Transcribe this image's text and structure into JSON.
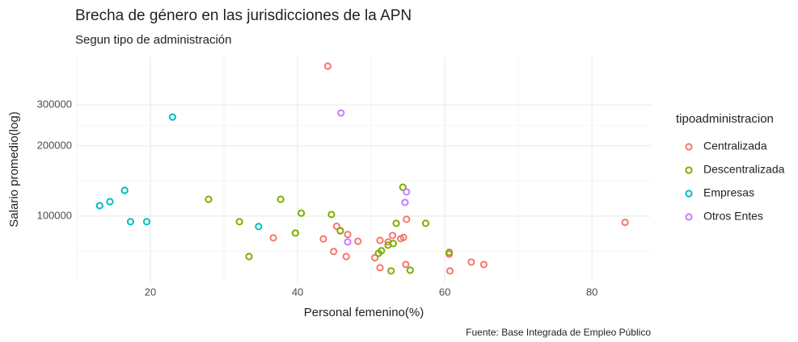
{
  "chart_data": {
    "type": "scatter",
    "title": "Brecha de género en las jurisdicciones de la APN",
    "subtitle": "Segun tipo de administración",
    "x_label": "Personal femenino(%)",
    "y_label": "Salario promedio(log)",
    "caption": "Fuente: Base Integrada de Empleo Público",
    "legend_title": "tipoadministracion",
    "legend_position": "right",
    "y_log": true,
    "grid": true,
    "xlim": [
      10,
      88
    ],
    "xticks": [
      20,
      40,
      60,
      80
    ],
    "x_minor_ticks": [
      10,
      30,
      50,
      70
    ],
    "ylim": [
      52000,
      484000
    ],
    "yticks": [
      100000,
      200000,
      300000
    ],
    "y_minor_ticks": [
      70711,
      141421,
      244949
    ],
    "series": [
      {
        "name": "Centralizada",
        "color": "#F8766D",
        "x": [
          44.1,
          43.5,
          45.3,
          45.8,
          46.8,
          48.2,
          36.7,
          44.9,
          46.6,
          51.2,
          51.2,
          52.3,
          52.9,
          54.0,
          54.4,
          54.8,
          54.7,
          60.6,
          60.7,
          63.6,
          65.3,
          84.5,
          50.5
        ],
        "values": [
          440000,
          79800,
          90500,
          86400,
          83400,
          78000,
          80700,
          70500,
          67100,
          78700,
          60100,
          77500,
          82600,
          80000,
          81000,
          96900,
          62000,
          68700,
          58200,
          63500,
          62000,
          94000,
          66300
        ]
      },
      {
        "name": "Descentralizada",
        "color": "#7CAE00",
        "x": [
          27.9,
          32.1,
          33.4,
          37.7,
          39.7,
          40.5,
          44.6,
          45.8,
          51.0,
          51.4,
          52.3,
          53.0,
          52.7,
          53.4,
          54.3,
          55.3,
          57.4,
          60.6
        ],
        "values": [
          118000,
          94600,
          67100,
          118000,
          84600,
          103000,
          101600,
          86600,
          69300,
          71000,
          75100,
          76300,
          58200,
          93100,
          133000,
          58600,
          93100,
          69900
        ]
      },
      {
        "name": "Empresas",
        "color": "#00BFC4",
        "x": [
          13.1,
          14.5,
          16.5,
          17.3,
          19.5,
          23.0,
          34.7
        ],
        "values": [
          110900,
          115400,
          129000,
          94600,
          94600,
          266000,
          90200
        ]
      },
      {
        "name": "Otros Entes",
        "color": "#C77CFF",
        "x": [
          45.9,
          54.8,
          54.6,
          46.8
        ],
        "values": [
          277000,
          127000,
          114500,
          77500
        ]
      }
    ]
  }
}
